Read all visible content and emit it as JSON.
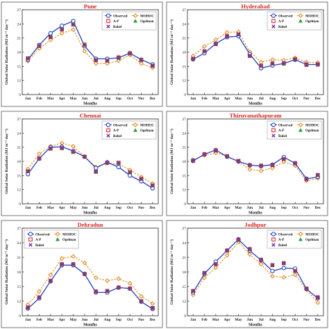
{
  "figure": {
    "months": [
      "Jan",
      "Feb",
      "Mar",
      "Apr",
      "May",
      "Jun",
      "Jul",
      "Aug",
      "Sep",
      "Oct",
      "Nov",
      "Dec"
    ],
    "xlabel": "Months",
    "ylabel": "Global Solar Radiation (MJ m⁻² day⁻¹)",
    "legend": [
      "Observed",
      "MOHOC",
      "A-P",
      "Ogelman",
      "Bahel"
    ],
    "colors": {
      "observed": "#1f3fbf",
      "mohoc": "#e08a1e",
      "ap": "#d81b2c",
      "ogelman": "#2a9d3a",
      "bahel": "#7a2a9a",
      "title": "#d9231c"
    },
    "marker_icons": {
      "observed": "circle",
      "mohoc": "diamond",
      "ap": "square",
      "ogelman": "triangle",
      "bahel": "x-mark"
    }
  },
  "chart_data": [
    {
      "type": "line",
      "title": "Pune",
      "xlabel": "Months",
      "ylabel": "Global Solar Radiation (MJ m⁻² day⁻¹)",
      "categories": [
        "Jan",
        "Feb",
        "Mar",
        "Apr",
        "May",
        "Jun",
        "Jul",
        "Aug",
        "Sep",
        "Oct",
        "Nov",
        "Dec"
      ],
      "ylim": [
        9,
        27
      ],
      "yticks": [
        9,
        12,
        15,
        18,
        21,
        24,
        27
      ],
      "legend_position": "top-right",
      "series": [
        {
          "name": "Observed",
          "values": [
            16.4,
            19.5,
            22.0,
            23.6,
            24.6,
            19.3,
            16.6,
            16.6,
            16.8,
            17.8,
            16.4,
            15.4
          ]
        },
        {
          "name": "MOHOC",
          "values": [
            16.1,
            18.8,
            20.6,
            22.0,
            22.8,
            18.2,
            15.6,
            15.6,
            16.2,
            17.4,
            15.6,
            14.7
          ]
        },
        {
          "name": "A-P",
          "values": [
            16.7,
            19.3,
            21.2,
            22.8,
            23.9,
            19.6,
            16.3,
            16.2,
            16.9,
            17.8,
            16.3,
            15.1
          ]
        },
        {
          "name": "Ogelman",
          "values": [
            16.7,
            19.3,
            21.3,
            22.9,
            24.0,
            19.6,
            16.3,
            16.2,
            16.8,
            17.8,
            16.3,
            15.1
          ]
        },
        {
          "name": "Bahel",
          "values": [
            16.7,
            19.4,
            21.2,
            22.8,
            23.8,
            19.5,
            16.3,
            16.2,
            16.8,
            17.7,
            16.4,
            15.1
          ]
        }
      ]
    },
    {
      "type": "line",
      "title": "Hyderabad",
      "xlabel": "Months",
      "ylabel": "Global Solar Radiation (MJ m⁻² day⁻¹)",
      "categories": [
        "Jan",
        "Feb",
        "Mar",
        "Apr",
        "May",
        "Jun",
        "Jul",
        "Aug",
        "Sep",
        "Oct",
        "Nov",
        "Dec"
      ],
      "ylim": [
        9,
        27
      ],
      "yticks": [
        9,
        12,
        15,
        18,
        21,
        24,
        27
      ],
      "legend_position": "top-right",
      "series": [
        {
          "name": "Observed",
          "values": [
            16.5,
            17.8,
            19.8,
            21.2,
            21.4,
            17.6,
            14.6,
            15.2,
            15.6,
            16.4,
            15.4,
            15.4
          ]
        },
        {
          "name": "MOHOC",
          "values": [
            17.2,
            19.2,
            20.6,
            22.2,
            22.3,
            18.1,
            15.9,
            16.4,
            16.3,
            16.8,
            15.9,
            15.8
          ]
        },
        {
          "name": "A-P",
          "values": [
            16.6,
            18.2,
            19.7,
            21.4,
            21.8,
            17.2,
            15.1,
            15.6,
            15.6,
            16.5,
            15.3,
            15.4
          ]
        },
        {
          "name": "Ogelman",
          "values": [
            16.6,
            18.2,
            19.7,
            21.4,
            21.8,
            17.2,
            15.1,
            15.6,
            15.6,
            16.5,
            15.3,
            15.4
          ]
        },
        {
          "name": "Bahel",
          "values": [
            16.6,
            18.2,
            19.7,
            21.4,
            21.7,
            17.2,
            15.2,
            15.6,
            15.7,
            16.5,
            15.4,
            15.4
          ]
        }
      ]
    },
    {
      "type": "line",
      "title": "Chennai",
      "xlabel": "Months",
      "ylabel": "Global Solar Radiation (MJ m⁻² day⁻¹)",
      "categories": [
        "Jan",
        "Feb",
        "Mar",
        "Apr",
        "May",
        "Jun",
        "Jul",
        "Aug",
        "Sep",
        "Oct",
        "Nov",
        "Dec"
      ],
      "ylim": [
        9,
        27
      ],
      "yticks": [
        9,
        12,
        15,
        18,
        21,
        24,
        27
      ],
      "legend_position": "top-right",
      "series": [
        {
          "name": "Observed",
          "values": [
            15.3,
            18.6,
            21.0,
            21.1,
            20.2,
            19.0,
            16.6,
            17.8,
            16.8,
            15.0,
            13.8,
            12.3
          ]
        },
        {
          "name": "MOHOC",
          "values": [
            16.4,
            19.6,
            21.2,
            21.9,
            21.2,
            19.0,
            16.8,
            17.6,
            17.4,
            16.2,
            14.7,
            13.3
          ]
        },
        {
          "name": "A-P",
          "values": [
            15.9,
            18.6,
            20.7,
            20.8,
            20.0,
            19.0,
            15.8,
            17.7,
            17.7,
            15.7,
            14.3,
            12.9
          ]
        },
        {
          "name": "Ogelman",
          "values": [
            15.9,
            18.6,
            20.7,
            20.8,
            20.0,
            19.0,
            15.8,
            17.7,
            17.6,
            15.7,
            14.3,
            12.9
          ]
        },
        {
          "name": "Bahel",
          "values": [
            15.9,
            18.7,
            20.8,
            20.9,
            20.1,
            19.0,
            15.8,
            17.7,
            17.7,
            15.6,
            14.3,
            12.9
          ]
        }
      ]
    },
    {
      "type": "line",
      "title": "Thiruvanathapuram",
      "xlabel": "Months",
      "ylabel": "Global Solar Radiation (MJ m⁻² day⁻¹)",
      "categories": [
        "Jan",
        "Feb",
        "Mar",
        "Apr",
        "May",
        "Jun",
        "Jul",
        "Aug",
        "Sep",
        "Oct",
        "Nov",
        "Dec"
      ],
      "ylim": [
        9,
        27
      ],
      "yticks": [
        9,
        12,
        15,
        18,
        21,
        24,
        27
      ],
      "legend_position": "top-right",
      "series": [
        {
          "name": "Observed",
          "values": [
            18.1,
            19.5,
            20.4,
            19.0,
            18.0,
            17.2,
            17.0,
            17.3,
            18.9,
            17.6,
            14.3,
            14.7
          ]
        },
        {
          "name": "MOHOC",
          "values": [
            18.3,
            19.3,
            19.8,
            19.1,
            17.9,
            16.3,
            16.0,
            16.6,
            17.9,
            17.1,
            13.9,
            14.4
          ]
        },
        {
          "name": "A-P",
          "values": [
            18.2,
            19.5,
            20.3,
            19.1,
            18.1,
            17.2,
            17.1,
            17.2,
            18.5,
            17.6,
            14.2,
            15.1
          ]
        },
        {
          "name": "Ogelman",
          "values": [
            18.2,
            19.5,
            20.3,
            19.1,
            18.1,
            17.2,
            17.1,
            17.2,
            18.5,
            17.6,
            14.2,
            15.1
          ]
        },
        {
          "name": "Bahel",
          "values": [
            18.2,
            19.5,
            20.2,
            19.1,
            18.1,
            17.2,
            17.1,
            17.2,
            18.5,
            17.6,
            14.2,
            15.1
          ]
        }
      ]
    },
    {
      "type": "line",
      "title": "Dehradun",
      "xlabel": "Months",
      "ylabel": "Global Solar Radiation (MJ m⁻² day⁻¹)",
      "categories": [
        "Jan",
        "Feb",
        "Mar",
        "Apr",
        "May",
        "Jun",
        "Jul",
        "Aug",
        "Sep",
        "Oct",
        "Nov",
        "Dec"
      ],
      "ylim": [
        9,
        27
      ],
      "yticks": [
        9,
        12,
        15,
        18,
        21,
        24,
        27
      ],
      "legend_position": "top-left",
      "series": [
        {
          "name": "Observed",
          "values": [
            10.5,
            12.6,
            16.1,
            19.4,
            19.4,
            17.6,
            13.8,
            13.8,
            14.8,
            14.6,
            11.9,
            10.4
          ]
        },
        {
          "name": "MOHOC",
          "values": [
            11.3,
            14.0,
            17.4,
            20.8,
            21.2,
            19.9,
            16.8,
            16.2,
            16.6,
            15.7,
            13.0,
            11.5
          ]
        },
        {
          "name": "A-P",
          "values": [
            10.7,
            12.8,
            16.2,
            19.6,
            19.6,
            17.6,
            14.0,
            14.1,
            14.8,
            14.6,
            12.0,
            10.6
          ]
        },
        {
          "name": "Ogelman",
          "values": [
            10.7,
            12.8,
            16.2,
            19.6,
            19.6,
            17.6,
            14.0,
            14.1,
            14.8,
            14.6,
            12.0,
            10.6
          ]
        },
        {
          "name": "Bahel",
          "values": [
            10.7,
            12.8,
            16.2,
            19.6,
            19.6,
            17.6,
            14.0,
            14.1,
            14.8,
            14.6,
            12.0,
            10.6
          ]
        }
      ]
    },
    {
      "type": "line",
      "title": "Jodhpur",
      "xlabel": "Months",
      "ylabel": "Global Solar Radiation (MJ m⁻² day⁻¹)",
      "categories": [
        "Jan",
        "Feb",
        "Mar",
        "Apr",
        "May",
        "Jun",
        "Jul",
        "Aug",
        "Sep",
        "Oct",
        "Nov",
        "Dec"
      ],
      "ylim": [
        9,
        27
      ],
      "yticks": [
        9,
        12,
        15,
        18,
        21,
        24,
        27
      ],
      "legend_position": "top-right",
      "series": [
        {
          "name": "Observed",
          "values": [
            13.8,
            17.6,
            20.1,
            22.4,
            24.7,
            22.4,
            20.4,
            18.2,
            18.8,
            18.7,
            14.5,
            12.6
          ]
        },
        {
          "name": "MOHOC",
          "values": [
            13.3,
            16.8,
            18.9,
            21.4,
            24.2,
            21.6,
            19.6,
            17.1,
            16.9,
            17.4,
            14.4,
            11.7
          ]
        },
        {
          "name": "A-P",
          "values": [
            14.1,
            17.8,
            19.6,
            22.4,
            24.6,
            22.7,
            20.5,
            19.4,
            19.8,
            18.2,
            14.6,
            12.8
          ]
        },
        {
          "name": "Ogelman",
          "values": [
            14.1,
            17.8,
            19.6,
            22.4,
            24.5,
            22.8,
            20.6,
            19.4,
            19.8,
            18.2,
            14.6,
            12.8
          ]
        },
        {
          "name": "Bahel",
          "values": [
            14.1,
            17.8,
            19.6,
            22.4,
            24.6,
            22.7,
            20.5,
            19.4,
            19.8,
            18.2,
            14.6,
            12.8
          ]
        }
      ]
    }
  ]
}
